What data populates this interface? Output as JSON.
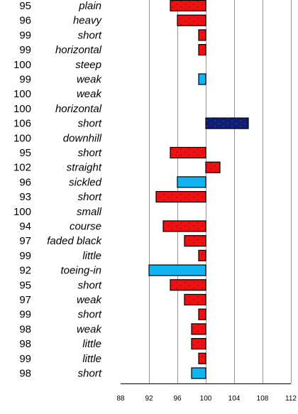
{
  "chart_data": {
    "type": "bar",
    "orientation": "horizontal",
    "baseline": 100,
    "xlim": [
      88,
      112
    ],
    "xticks": [
      88,
      92,
      96,
      100,
      104,
      108,
      112
    ],
    "grid": "vertical",
    "legend": "none",
    "colors": {
      "red": "#ee1111",
      "blue": "#11b4ee",
      "navy": "#0a1f7a",
      "border": "#000000",
      "grid": "#999999",
      "dots": "#7a1010"
    },
    "rows": [
      {
        "score": "95",
        "label": "plain",
        "value": 95,
        "fill": "red"
      },
      {
        "score": "96",
        "label": "heavy",
        "value": 96,
        "fill": "red"
      },
      {
        "score": "99",
        "label": "short",
        "value": 99,
        "fill": "red"
      },
      {
        "score": "99",
        "label": "horizontal",
        "value": 99,
        "fill": "red"
      },
      {
        "score": "100",
        "label": "steep",
        "value": 100,
        "fill": "none"
      },
      {
        "score": "99",
        "label": "weak",
        "value": 99,
        "fill": "blue"
      },
      {
        "score": "100",
        "label": "weak",
        "value": 100,
        "fill": "none"
      },
      {
        "score": "100",
        "label": "horizontal",
        "value": 100,
        "fill": "none"
      },
      {
        "score": "106",
        "label": "short",
        "value": 106,
        "fill": "navy"
      },
      {
        "score": "100",
        "label": "downhill",
        "value": 100,
        "fill": "none"
      },
      {
        "score": "95",
        "label": "short",
        "value": 95,
        "fill": "red"
      },
      {
        "score": "102",
        "label": "straight",
        "value": 102,
        "fill": "red"
      },
      {
        "score": "96",
        "label": "sickled",
        "value": 96,
        "fill": "blue"
      },
      {
        "score": "93",
        "label": "short",
        "value": 93,
        "fill": "red"
      },
      {
        "score": "100",
        "label": "small",
        "value": 100,
        "fill": "none"
      },
      {
        "score": "94",
        "label": "course",
        "value": 94,
        "fill": "red"
      },
      {
        "score": "97",
        "label": "faded black",
        "value": 97,
        "fill": "red"
      },
      {
        "score": "99",
        "label": "little",
        "value": 99,
        "fill": "red"
      },
      {
        "score": "92",
        "label": "toeing-in",
        "value": 92,
        "fill": "blue"
      },
      {
        "score": "95",
        "label": "short",
        "value": 95,
        "fill": "red"
      },
      {
        "score": "97",
        "label": "weak",
        "value": 97,
        "fill": "red"
      },
      {
        "score": "99",
        "label": "short",
        "value": 99,
        "fill": "red"
      },
      {
        "score": "98",
        "label": "weak",
        "value": 98,
        "fill": "red"
      },
      {
        "score": "98",
        "label": "little",
        "value": 98,
        "fill": "red"
      },
      {
        "score": "99",
        "label": "little",
        "value": 99,
        "fill": "red"
      },
      {
        "score": "98",
        "label": "short",
        "value": 98,
        "fill": "blue"
      }
    ]
  }
}
